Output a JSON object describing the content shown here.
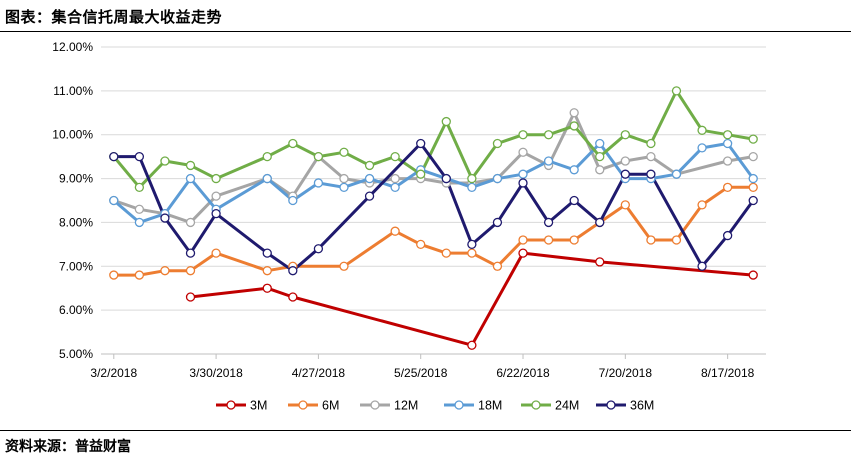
{
  "page": {
    "title": "图表：集合信托周最大收益走势",
    "source": "资料来源：普益财富"
  },
  "chart_data": {
    "type": "line",
    "title": "",
    "xlabel": "",
    "ylabel": "",
    "ylim": [
      5.0,
      12.0
    ],
    "y_ticks": [
      "5.00%",
      "6.00%",
      "7.00%",
      "8.00%",
      "9.00%",
      "10.00%",
      "11.00%",
      "12.00%"
    ],
    "y_tick_values": [
      5,
      6,
      7,
      8,
      9,
      10,
      11,
      12
    ],
    "x_dates": [
      "3/2/2018",
      "3/9/2018",
      "3/16/2018",
      "3/23/2018",
      "3/30/2018",
      "4/6/2018",
      "4/13/2018",
      "4/20/2018",
      "4/27/2018",
      "5/4/2018",
      "5/11/2018",
      "5/18/2018",
      "5/25/2018",
      "6/1/2018",
      "6/8/2018",
      "6/15/2018",
      "6/22/2018",
      "6/29/2018",
      "7/6/2018",
      "7/13/2018",
      "7/20/2018",
      "7/27/2018",
      "8/3/2018",
      "8/10/2018",
      "8/17/2018",
      "8/24/2018"
    ],
    "x_tick_labels": [
      "3/2/2018",
      "3/30/2018",
      "4/27/2018",
      "5/25/2018",
      "6/22/2018",
      "7/20/2018",
      "8/17/2018"
    ],
    "x_tick_positions": [
      0,
      4,
      8,
      12,
      16,
      20,
      24
    ],
    "grid": "horizontal",
    "legend_position": "bottom",
    "series": [
      {
        "name": "3M",
        "color": "#c00000",
        "values": [
          null,
          null,
          null,
          6.3,
          null,
          null,
          6.5,
          6.3,
          null,
          null,
          null,
          null,
          null,
          null,
          5.2,
          null,
          7.3,
          null,
          null,
          7.1,
          null,
          null,
          null,
          null,
          null,
          6.8
        ]
      },
      {
        "name": "6M",
        "color": "#ed7d31",
        "values": [
          6.8,
          6.8,
          6.9,
          6.9,
          7.3,
          null,
          6.9,
          7.0,
          null,
          7.0,
          null,
          7.8,
          7.5,
          7.3,
          7.3,
          7.0,
          7.6,
          7.6,
          7.6,
          8.0,
          8.4,
          7.6,
          7.6,
          8.4,
          8.8,
          8.8
        ]
      },
      {
        "name": "12M",
        "color": "#a5a5a5",
        "values": [
          8.5,
          8.3,
          8.2,
          8.0,
          8.6,
          null,
          9.0,
          8.6,
          9.5,
          9.0,
          8.9,
          9.0,
          9.0,
          8.9,
          8.9,
          9.0,
          9.6,
          9.3,
          10.5,
          9.2,
          9.4,
          9.5,
          9.1,
          null,
          9.4,
          9.5
        ]
      },
      {
        "name": "18M",
        "color": "#5b9bd5",
        "values": [
          8.5,
          8.0,
          8.2,
          9.0,
          8.3,
          null,
          9.0,
          8.5,
          8.9,
          8.8,
          9.0,
          8.8,
          9.2,
          9.0,
          8.8,
          9.0,
          9.1,
          9.4,
          9.2,
          9.8,
          9.0,
          9.0,
          9.1,
          9.7,
          9.8,
          9.0
        ]
      },
      {
        "name": "24M",
        "color": "#70ad47",
        "values": [
          9.5,
          8.8,
          9.4,
          9.3,
          9.0,
          null,
          9.5,
          9.8,
          9.5,
          9.6,
          9.3,
          9.5,
          9.1,
          10.3,
          9.0,
          9.8,
          10.0,
          10.0,
          10.2,
          9.5,
          10.0,
          9.8,
          11.0,
          10.1,
          10.0,
          9.9
        ]
      },
      {
        "name": "36M",
        "color": "#1f1a6e",
        "values": [
          9.5,
          9.5,
          8.1,
          7.3,
          8.2,
          null,
          7.3,
          6.9,
          7.4,
          null,
          8.6,
          null,
          9.8,
          9.0,
          7.5,
          8.0,
          8.9,
          8.0,
          8.5,
          8.0,
          9.1,
          9.1,
          null,
          7.0,
          7.7,
          8.5
        ]
      }
    ]
  }
}
